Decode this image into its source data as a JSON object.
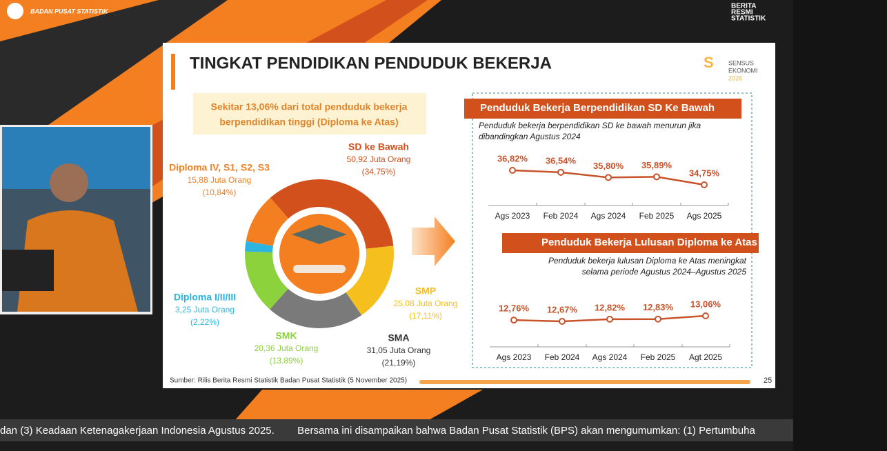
{
  "header": {
    "logo_text": "BADAN PUSAT STATISTIK",
    "brs": [
      "BERITA",
      "RESMI",
      "STATISTIK"
    ]
  },
  "slide": {
    "title": "TINGKAT PENDIDIKAN PENDUDUK BEKERJA",
    "brand": [
      "SENSUS",
      "EKONOMI",
      "2026"
    ],
    "highlight": [
      "Sekitar 13,06% dari total penduduk bekerja",
      "berpendidikan tinggi (Diploma ke Atas)"
    ],
    "donut": {
      "type": "pie",
      "categories": [
        "SD ke Bawah",
        "SMP",
        "SMA",
        "SMK",
        "Diploma I/II/III",
        "Diploma IV, S1, S2, S3"
      ],
      "amounts": [
        "50,92 Juta Orang",
        "25,08 Juta Orang",
        "31,05 Juta Orang",
        "20,36 Juta Orang",
        "3,25 Juta Orang",
        "15,88 Juta Orang"
      ],
      "values": [
        34.75,
        17.11,
        21.19,
        13.89,
        2.22,
        10.84
      ],
      "value_labels": [
        "(34,75%)",
        "(17,11%)",
        "(21,19%)",
        "(13,89%)",
        "(2,22%)",
        "(10,84%)"
      ],
      "colors": [
        "#d2501c",
        "#f5bf1e",
        "#7a7a7a",
        "#8cd23c",
        "#2bb5e0",
        "#f47f20"
      ]
    },
    "line_charts": [
      {
        "type": "line",
        "title": "Penduduk Bekerja Berpendidikan SD Ke Bawah",
        "subtitle": [
          "Penduduk bekerja berpendidikan SD ke bawah menurun jika",
          "dibandingkan Agustus 2024"
        ],
        "categories": [
          "Ags 2023",
          "Feb 2024",
          "Ags 2024",
          "Feb 2025",
          "Ags 2025"
        ],
        "values": [
          36.82,
          36.54,
          35.8,
          35.89,
          34.75
        ],
        "value_labels": [
          "36,82%",
          "36,54%",
          "35,80%",
          "35,89%",
          "34,75%"
        ],
        "color": "#c8532a"
      },
      {
        "type": "line",
        "title": "Penduduk Bekerja Lulusan Diploma ke Atas",
        "subtitle": [
          "Penduduk bekerja lulusan Diploma ke Atas meningkat",
          "selama periode Agustus 2024–Agustus 2025"
        ],
        "categories": [
          "Ags 2023",
          "Feb 2024",
          "Ags 2024",
          "Feb 2025",
          "Agt 2025"
        ],
        "values": [
          12.76,
          12.67,
          12.82,
          12.83,
          13.06
        ],
        "value_labels": [
          "12,76%",
          "12,67%",
          "12,82%",
          "12,83%",
          "13,06%"
        ],
        "color": "#c8532a"
      }
    ],
    "source": "Sumber: Rilis Berita Resmi Statistik Badan Pusat Statistik (5 November 2025)",
    "page": "25"
  },
  "ticker": "dan (3) Keadaan Ketenagakerjaan Indonesia Agustus 2025.        Bersama ini disampaikan bahwa Badan Pusat Statistik (BPS) akan mengumumkan: (1) Pertumbuha"
}
